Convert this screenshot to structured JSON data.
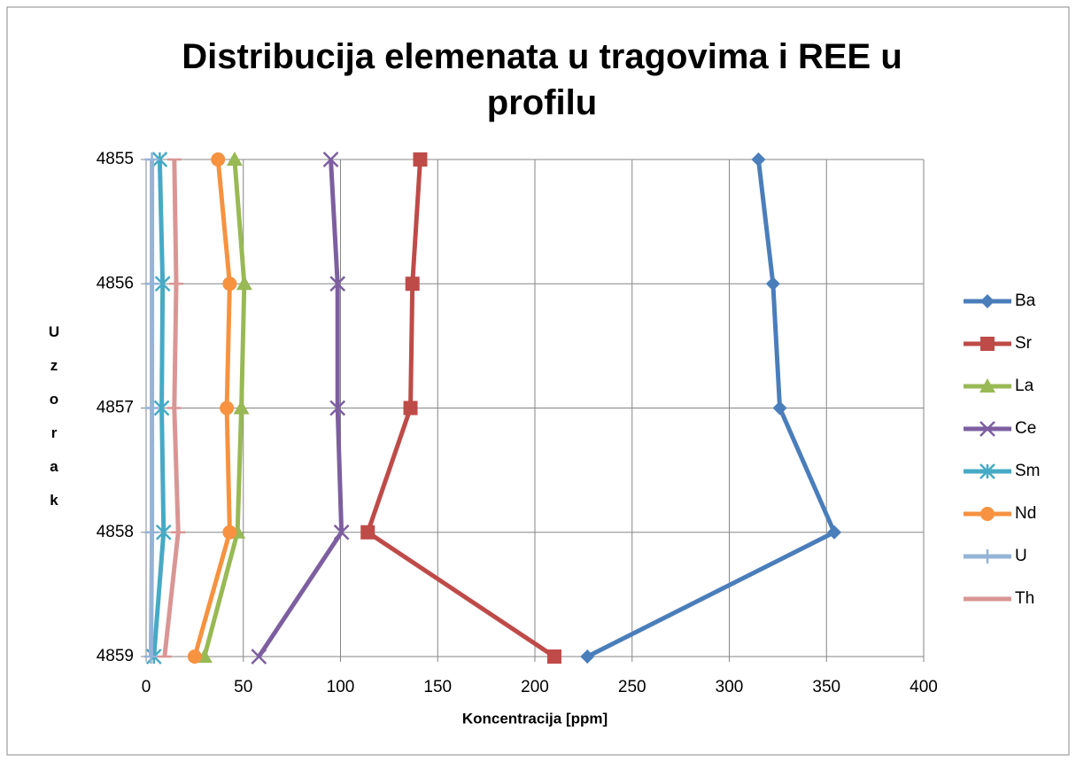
{
  "chart_data": {
    "type": "line",
    "orientation": "horizontal",
    "title": "Distribucija elemenata u tragovima i REE u profilu",
    "x_label": "Koncentracija [ppm]",
    "y_label": "Uzorak",
    "categories": [
      "4855",
      "4856",
      "4857",
      "4858",
      "4859"
    ],
    "xlim": [
      0,
      400
    ],
    "xticks": [
      0,
      50,
      100,
      150,
      200,
      250,
      300,
      350,
      400
    ],
    "grid": true,
    "legend": "right",
    "series": [
      {
        "name": "Ba",
        "color": "#4a7ebb",
        "marker": "diamond",
        "values": [
          315,
          322.5,
          326,
          354,
          227
        ]
      },
      {
        "name": "Sr",
        "color": "#be4b48",
        "marker": "square",
        "values": [
          141,
          137,
          136,
          114,
          210
        ]
      },
      {
        "name": "La",
        "color": "#98b954",
        "marker": "triangle",
        "values": [
          45.5,
          50.5,
          49,
          47,
          30
        ]
      },
      {
        "name": "Ce",
        "color": "#7d5fa0",
        "marker": "x",
        "values": [
          95,
          98.5,
          98.5,
          100.5,
          58
        ]
      },
      {
        "name": "Sm",
        "color": "#46aac5",
        "marker": "star",
        "values": [
          7,
          8.5,
          8,
          9,
          4
        ]
      },
      {
        "name": "Nd",
        "color": "#f69240",
        "marker": "circle",
        "values": [
          37,
          43,
          41.5,
          43,
          25
        ]
      },
      {
        "name": "U",
        "color": "#95b3d7",
        "marker": "plus",
        "values": [
          3,
          3,
          3,
          3,
          2.5
        ]
      },
      {
        "name": "Th",
        "color": "#d99694",
        "marker": "dash",
        "values": [
          14.5,
          15.5,
          14.5,
          16.5,
          9.5
        ]
      }
    ]
  }
}
